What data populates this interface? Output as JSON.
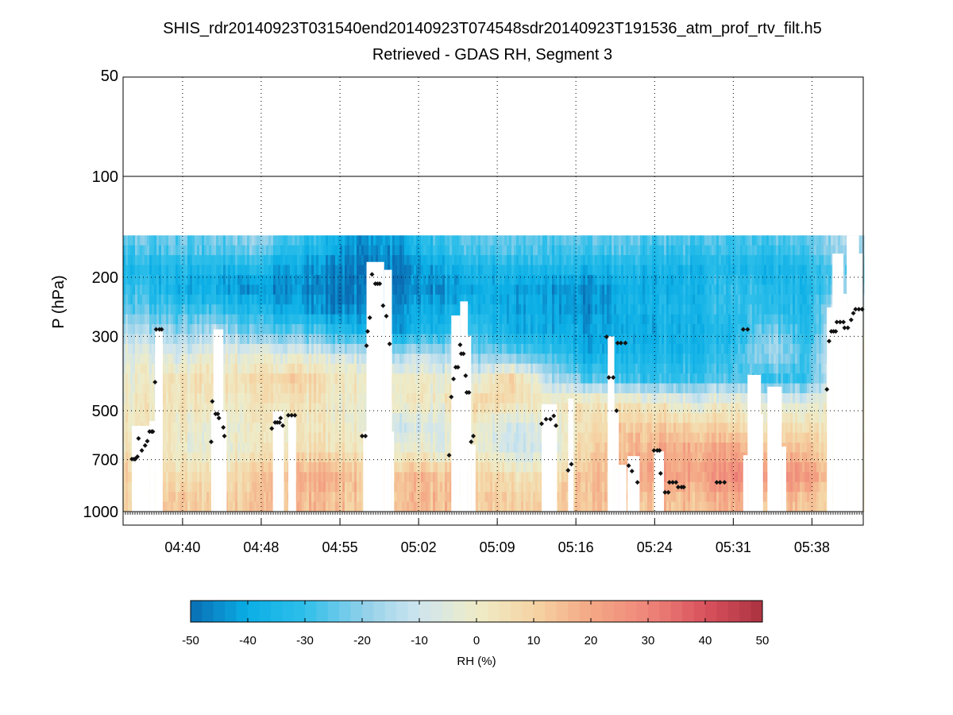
{
  "chart_data": {
    "type": "heatmap",
    "title": "SHIS_rdr20140923T031540end20140923T074548sdr20140923T191536_atm_prof_rtv_filt.h5",
    "subtitle": "Retrieved - GDAS RH, Segment 3",
    "ylabel": "P (hPa)",
    "xlabel": "",
    "y_scale": "log",
    "ylim": [
      50,
      1100
    ],
    "y_reversed": true,
    "yticks": [
      50,
      100,
      200,
      300,
      500,
      700,
      1000
    ],
    "ytick_labels": [
      "50",
      "100",
      "200",
      "300",
      "500",
      "700",
      "1000"
    ],
    "x_units": "minutes after 04:00 UTC",
    "xlim": [
      34.6,
      101.8
    ],
    "xticks": [
      40,
      47.14,
      54.29,
      61.43,
      68.57,
      75.71,
      82.86,
      90,
      97.14
    ],
    "xtick_labels": [
      "04:40",
      "04:48",
      "04:55",
      "05:02",
      "05:09",
      "05:16",
      "05:24",
      "05:31",
      "05:38"
    ],
    "grid": "dotted",
    "data_p_range": [
      150,
      1000
    ],
    "pressure_bands": [
      160,
      185,
      215,
      250,
      290,
      340,
      400,
      470,
      550,
      650,
      780,
      920
    ],
    "column_time_range": [
      34.6,
      101.8
    ],
    "rh_diff_columns": [
      [
        -25,
        -35,
        -30,
        -25,
        -15,
        -5,
        0,
        2,
        3,
        5,
        10,
        10
      ],
      [
        -25,
        -35,
        -40,
        -30,
        -20,
        -8,
        3,
        3,
        0,
        0,
        5,
        12
      ],
      [
        -25,
        -35,
        -40,
        -30,
        -15,
        -2,
        5,
        3,
        -3,
        -3,
        5,
        10
      ],
      [
        -20,
        -35,
        -45,
        -35,
        -25,
        -5,
        5,
        3,
        0,
        0,
        10,
        12
      ],
      [
        -30,
        -40,
        -45,
        -40,
        -25,
        -5,
        10,
        5,
        0,
        5,
        15,
        15
      ],
      [
        -35,
        -45,
        -48,
        -45,
        -30,
        -8,
        5,
        3,
        3,
        5,
        20,
        15
      ],
      [
        -45,
        -48,
        -48,
        -45,
        -35,
        -10,
        3,
        0,
        0,
        3,
        12,
        12
      ],
      [
        -40,
        -48,
        -48,
        -42,
        -40,
        -15,
        0,
        3,
        -10,
        0,
        15,
        15
      ],
      [
        -30,
        -40,
        -45,
        -40,
        -35,
        -15,
        -2,
        0,
        -8,
        -5,
        15,
        15
      ],
      [
        -25,
        -35,
        -40,
        -35,
        -30,
        -20,
        -5,
        10,
        0,
        0,
        10,
        12
      ],
      [
        -25,
        -35,
        -40,
        -40,
        -38,
        -25,
        10,
        5,
        -10,
        -10,
        5,
        10
      ],
      [
        -28,
        -35,
        -45,
        -42,
        -40,
        -30,
        -15,
        0,
        -5,
        -12,
        3,
        8
      ],
      [
        -25,
        -35,
        -45,
        -45,
        -40,
        -38,
        -25,
        5,
        5,
        10,
        15,
        15
      ],
      [
        -25,
        -35,
        -40,
        -38,
        -40,
        -38,
        -30,
        3,
        10,
        15,
        18,
        15
      ],
      [
        -28,
        -35,
        -38,
        -35,
        -38,
        -35,
        -30,
        0,
        12,
        20,
        25,
        15
      ],
      [
        -25,
        -35,
        -35,
        -35,
        -35,
        -35,
        -28,
        -5,
        10,
        20,
        22,
        15
      ],
      [
        -28,
        -35,
        -30,
        -30,
        -35,
        -30,
        -25,
        0,
        8,
        20,
        30,
        20
      ],
      [
        -28,
        -35,
        -33,
        -30,
        -20,
        -15,
        -30,
        -5,
        5,
        15,
        30,
        15
      ],
      [
        -25,
        -33,
        -35,
        -35,
        -33,
        -28,
        -30,
        -5,
        5,
        15,
        25,
        15
      ],
      [
        -15,
        -25,
        -20,
        -5,
        -5,
        0,
        0,
        0,
        0,
        0,
        0,
        0
      ]
    ],
    "masked_regions": [
      [
        35.4,
        37.0,
        555
      ],
      [
        37.0,
        37.5,
        537
      ],
      [
        37.5,
        38.2,
        286
      ],
      [
        42.6,
        42.8,
        502
      ],
      [
        42.8,
        43.7,
        286
      ],
      [
        43.7,
        44.0,
        502
      ],
      [
        48.2,
        49.2,
        502
      ],
      [
        49.6,
        50.3,
        516
      ],
      [
        56.4,
        56.7,
        577
      ],
      [
        56.7,
        58.3,
        180
      ],
      [
        58.3,
        59.0,
        190
      ],
      [
        59.0,
        59.2,
        577
      ],
      [
        64.4,
        65.2,
        260
      ],
      [
        65.2,
        65.9,
        236
      ],
      [
        65.9,
        66.2,
        299
      ],
      [
        66.2,
        66.6,
        633
      ],
      [
        72.6,
        74.0,
        478
      ],
      [
        75.0,
        75.5,
        460
      ],
      [
        78.6,
        79.2,
        300
      ],
      [
        79.2,
        79.6,
        500
      ],
      [
        79.6,
        80.3,
        725
      ],
      [
        80.4,
        81.5,
        683
      ],
      [
        82.8,
        83.7,
        661
      ],
      [
        90.9,
        91.3,
        679
      ],
      [
        91.3,
        92.5,
        391
      ],
      [
        92.5,
        92.7,
        512
      ],
      [
        93.1,
        94.4,
        424
      ],
      [
        94.4,
        94.8,
        640
      ],
      [
        98.5,
        99.0,
        246
      ],
      [
        99.0,
        100.0,
        170
      ],
      [
        100.0,
        100.3,
        224
      ],
      [
        100.3,
        101.4,
        150
      ],
      [
        101.4,
        101.8,
        170
      ]
    ],
    "markers": [
      [
        35.4,
        697
      ],
      [
        35.6,
        697
      ],
      [
        35.7,
        697
      ],
      [
        35.9,
        686
      ],
      [
        36.0,
        605
      ],
      [
        36.3,
        657
      ],
      [
        36.6,
        635
      ],
      [
        36.8,
        616
      ],
      [
        37.0,
        577
      ],
      [
        37.2,
        577
      ],
      [
        37.3,
        577
      ],
      [
        37.5,
        411
      ],
      [
        37.6,
        286
      ],
      [
        37.9,
        286
      ],
      [
        38.1,
        286
      ],
      [
        42.6,
        619
      ],
      [
        42.7,
        469
      ],
      [
        43.0,
        511
      ],
      [
        43.2,
        511
      ],
      [
        43.3,
        526
      ],
      [
        43.7,
        561
      ],
      [
        43.8,
        595
      ],
      [
        48.1,
        565
      ],
      [
        48.4,
        542
      ],
      [
        48.6,
        542
      ],
      [
        48.8,
        542
      ],
      [
        48.9,
        526
      ],
      [
        49.1,
        554
      ],
      [
        49.6,
        516
      ],
      [
        49.9,
        516
      ],
      [
        50.2,
        516
      ],
      [
        56.3,
        595
      ],
      [
        56.6,
        595
      ],
      [
        56.7,
        320
      ],
      [
        56.8,
        290
      ],
      [
        57.0,
        264
      ],
      [
        57.2,
        196
      ],
      [
        57.5,
        209
      ],
      [
        57.7,
        209
      ],
      [
        57.9,
        209
      ],
      [
        58.2,
        243
      ],
      [
        58.5,
        261
      ],
      [
        58.8,
        316
      ],
      [
        64.2,
        679
      ],
      [
        64.4,
        455
      ],
      [
        64.6,
        402
      ],
      [
        64.8,
        371
      ],
      [
        65.0,
        371
      ],
      [
        65.2,
        318
      ],
      [
        65.3,
        338
      ],
      [
        65.5,
        338
      ],
      [
        65.7,
        393
      ],
      [
        65.8,
        441
      ],
      [
        66.0,
        441
      ],
      [
        66.2,
        619
      ],
      [
        66.4,
        595
      ],
      [
        72.6,
        547
      ],
      [
        73.0,
        530
      ],
      [
        73.4,
        530
      ],
      [
        73.7,
        518
      ],
      [
        73.9,
        554
      ],
      [
        75.0,
        753
      ],
      [
        75.3,
        722
      ],
      [
        78.5,
        301
      ],
      [
        78.7,
        398
      ],
      [
        79.1,
        398
      ],
      [
        79.4,
        500
      ],
      [
        79.5,
        314
      ],
      [
        79.8,
        314
      ],
      [
        80.2,
        314
      ],
      [
        80.5,
        729
      ],
      [
        80.8,
        757
      ],
      [
        81.3,
        818
      ],
      [
        82.8,
        657
      ],
      [
        83.1,
        657
      ],
      [
        83.3,
        657
      ],
      [
        83.4,
        769
      ],
      [
        83.8,
        876
      ],
      [
        84.1,
        876
      ],
      [
        84.2,
        818
      ],
      [
        84.5,
        818
      ],
      [
        84.8,
        818
      ],
      [
        85.0,
        845
      ],
      [
        85.3,
        845
      ],
      [
        85.5,
        845
      ],
      [
        88.5,
        818
      ],
      [
        88.8,
        818
      ],
      [
        89.2,
        818
      ],
      [
        90.9,
        286
      ],
      [
        91.3,
        286
      ],
      [
        98.5,
        432
      ],
      [
        98.7,
        310
      ],
      [
        98.9,
        290
      ],
      [
        99.1,
        290
      ],
      [
        99.3,
        290
      ],
      [
        99.4,
        272
      ],
      [
        99.7,
        272
      ],
      [
        100.0,
        272
      ],
      [
        100.1,
        283
      ],
      [
        100.4,
        283
      ],
      [
        100.7,
        268
      ],
      [
        100.9,
        256
      ],
      [
        101.1,
        249
      ],
      [
        101.4,
        249
      ],
      [
        101.7,
        249
      ]
    ],
    "surface_marker_p": 1010,
    "colorbar": {
      "label": "RH (%)",
      "range": [
        -50,
        50
      ],
      "ticks": [
        -50,
        -40,
        -30,
        -20,
        -10,
        0,
        10,
        20,
        30,
        40,
        50
      ],
      "tick_labels": [
        "-50",
        "-40",
        "-30",
        "-20",
        "-10",
        "0",
        "10",
        "20",
        "30",
        "40",
        "50"
      ],
      "colors": [
        "#0a6db3",
        "#0aaee6",
        "#2fbfea",
        "#8fd0ea",
        "#cfe5ee",
        "#eeecc8",
        "#f5d4a4",
        "#f4a885",
        "#ee857a",
        "#d9525d",
        "#aa3240"
      ]
    }
  }
}
